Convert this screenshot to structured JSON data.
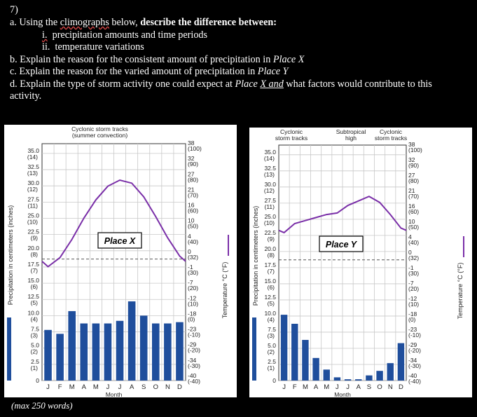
{
  "question": {
    "number": "7)",
    "a_prefix": "a. Using the ",
    "a_word": "climographs",
    "a_mid": " below, ",
    "a_bold": "describe the difference between:",
    "i_label": "i.",
    "i_text": "precipitation amounts and time periods",
    "ii_label": "ii.",
    "ii_text": "temperature variations",
    "b_prefix": "b.  Explain the reason for the consistent amount of precipitation in ",
    "b_place": "Place X",
    "c_prefix": "c.  Explain the reason for the varied amount of precipitation in ",
    "c_place": "Place Y",
    "d_prefix": "d.  Explain the type of storm activity one could expect at ",
    "d_place_a": "Place ",
    "d_place_b": "X  and",
    "d_suffix": " what factors would contribute to this",
    "d_line2": "activity.",
    "footer": "(max 250 words)"
  },
  "chart_data": [
    {
      "type": "bar",
      "title": "Place X",
      "header_line1": "Cyclonic storm tracks",
      "header_line2": "(summer convection)",
      "xlabel": "Month",
      "ylabel": "Precipitation in centimeters (inches)",
      "ylabel2": "Temperature °C (°F)",
      "categories": [
        "J",
        "F",
        "M",
        "A",
        "M",
        "J",
        "J",
        "A",
        "S",
        "O",
        "N",
        "D"
      ],
      "precip_cm": [
        7.8,
        7.2,
        10.7,
        8.8,
        8.8,
        8.8,
        9.2,
        12.2,
        10.0,
        8.8,
        8.8,
        9.0
      ],
      "temp_c": [
        -2.5,
        0.5,
        6.5,
        13.5,
        19.5,
        24.0,
        26.0,
        25.0,
        20.5,
        14.0,
        7.0,
        1.0
      ],
      "y_ticks_left": [
        {
          "v": 35.0,
          "in": "(14)"
        },
        {
          "v": 32.5,
          "in": "(13)"
        },
        {
          "v": 30.0,
          "in": "(12)"
        },
        {
          "v": 27.5,
          "in": "(11)"
        },
        {
          "v": 25.0,
          "in": "(10)"
        },
        {
          "v": 22.5,
          "in": "(9)"
        },
        {
          "v": 20.0,
          "in": "(8)"
        },
        {
          "v": 17.5,
          "in": "(7)"
        },
        {
          "v": 15.0,
          "in": "(6)"
        },
        {
          "v": 12.5,
          "in": "(5)"
        },
        {
          "v": 10.0,
          "in": "(4)"
        },
        {
          "v": 7.5,
          "in": "(3)"
        },
        {
          "v": 5.0,
          "in": "(2)"
        },
        {
          "v": 2.5,
          "in": "(1)"
        },
        {
          "v": 0,
          "in": ""
        }
      ],
      "y_ticks_right": [
        {
          "c": "38",
          "f": "(100)"
        },
        {
          "c": "32",
          "f": "(90)"
        },
        {
          "c": "27",
          "f": "(80)"
        },
        {
          "c": "21",
          "f": "(70)"
        },
        {
          "c": "16",
          "f": "(60)"
        },
        {
          "c": "10",
          "f": "(50)"
        },
        {
          "c": "4",
          "f": "(40)"
        },
        {
          "c": "0",
          "f": "(32)"
        },
        {
          "c": "-1",
          "f": "(30)"
        },
        {
          "c": "-7",
          "f": "(20)"
        },
        {
          "c": "-12",
          "f": "(10)"
        },
        {
          "c": "-18",
          "f": "(0)"
        },
        {
          "c": "-23",
          "f": "(-10)"
        },
        {
          "c": "-29",
          "f": "(-20)"
        },
        {
          "c": "-34",
          "f": "(-30)"
        },
        {
          "c": "-40",
          "f": "(-40)"
        }
      ],
      "ylim_cm": [
        0,
        36.5
      ],
      "ylim_c": [
        -40,
        38
      ]
    },
    {
      "type": "bar",
      "title": "Place Y",
      "headers": [
        {
          "l1": "Cyclonic",
          "l2": "storm tracks"
        },
        {
          "l1": "Subtropical",
          "l2": "high"
        },
        {
          "l1": "Cyclonic",
          "l2": "storm tracks"
        }
      ],
      "xlabel": "Month",
      "ylabel": "Precipitation in centimeters (inches)",
      "ylabel2": "Temperature °C (°F)",
      "categories": [
        "J",
        "F",
        "M",
        "A",
        "M",
        "J",
        "J",
        "A",
        "S",
        "O",
        "N",
        "D"
      ],
      "precip_cm": [
        10.2,
        8.8,
        6.3,
        3.5,
        1.7,
        0.5,
        0.2,
        0.2,
        0.8,
        1.5,
        2.7,
        5.8
      ],
      "temp_c": [
        9.0,
        12.0,
        13.0,
        14.0,
        15.0,
        15.5,
        18.0,
        19.5,
        21.0,
        19.0,
        15.0,
        10.5
      ],
      "y_ticks_left": [
        {
          "v": 35.0,
          "in": "(14)"
        },
        {
          "v": 32.5,
          "in": "(13)"
        },
        {
          "v": 30.0,
          "in": "(12)"
        },
        {
          "v": 27.5,
          "in": "(11)"
        },
        {
          "v": 25.0,
          "in": "(10)"
        },
        {
          "v": 22.5,
          "in": "(9)"
        },
        {
          "v": 20.0,
          "in": "(8)"
        },
        {
          "v": 17.5,
          "in": "(7)"
        },
        {
          "v": 15.0,
          "in": "(6)"
        },
        {
          "v": 12.5,
          "in": "(5)"
        },
        {
          "v": 10.0,
          "in": "(4)"
        },
        {
          "v": 7.5,
          "in": "(3)"
        },
        {
          "v": 5.0,
          "in": "(2)"
        },
        {
          "v": 2.5,
          "in": "(1)"
        },
        {
          "v": 0,
          "in": ""
        }
      ],
      "y_ticks_right": [
        {
          "c": "38",
          "f": "(100)"
        },
        {
          "c": "32",
          "f": "(90)"
        },
        {
          "c": "27",
          "f": "(80)"
        },
        {
          "c": "21",
          "f": "(70)"
        },
        {
          "c": "16",
          "f": "(60)"
        },
        {
          "c": "10",
          "f": "(50)"
        },
        {
          "c": "4",
          "f": "(40)"
        },
        {
          "c": "0",
          "f": "(32)"
        },
        {
          "c": "-1",
          "f": "(30)"
        },
        {
          "c": "-7",
          "f": "(20)"
        },
        {
          "c": "-12",
          "f": "(10)"
        },
        {
          "c": "-18",
          "f": "(0)"
        },
        {
          "c": "-23",
          "f": "(-10)"
        },
        {
          "c": "-29",
          "f": "(-20)"
        },
        {
          "c": "-34",
          "f": "(-30)"
        },
        {
          "c": "-40",
          "f": "(-40)"
        }
      ],
      "ylim_cm": [
        0,
        36.5
      ],
      "ylim_c": [
        -40,
        38
      ]
    }
  ],
  "colors": {
    "bar": "#1f4e9c",
    "temp_line": "#7a2fa8",
    "legend_temp": "#7a2fa8",
    "legend_precip": "#1f4e9c"
  }
}
